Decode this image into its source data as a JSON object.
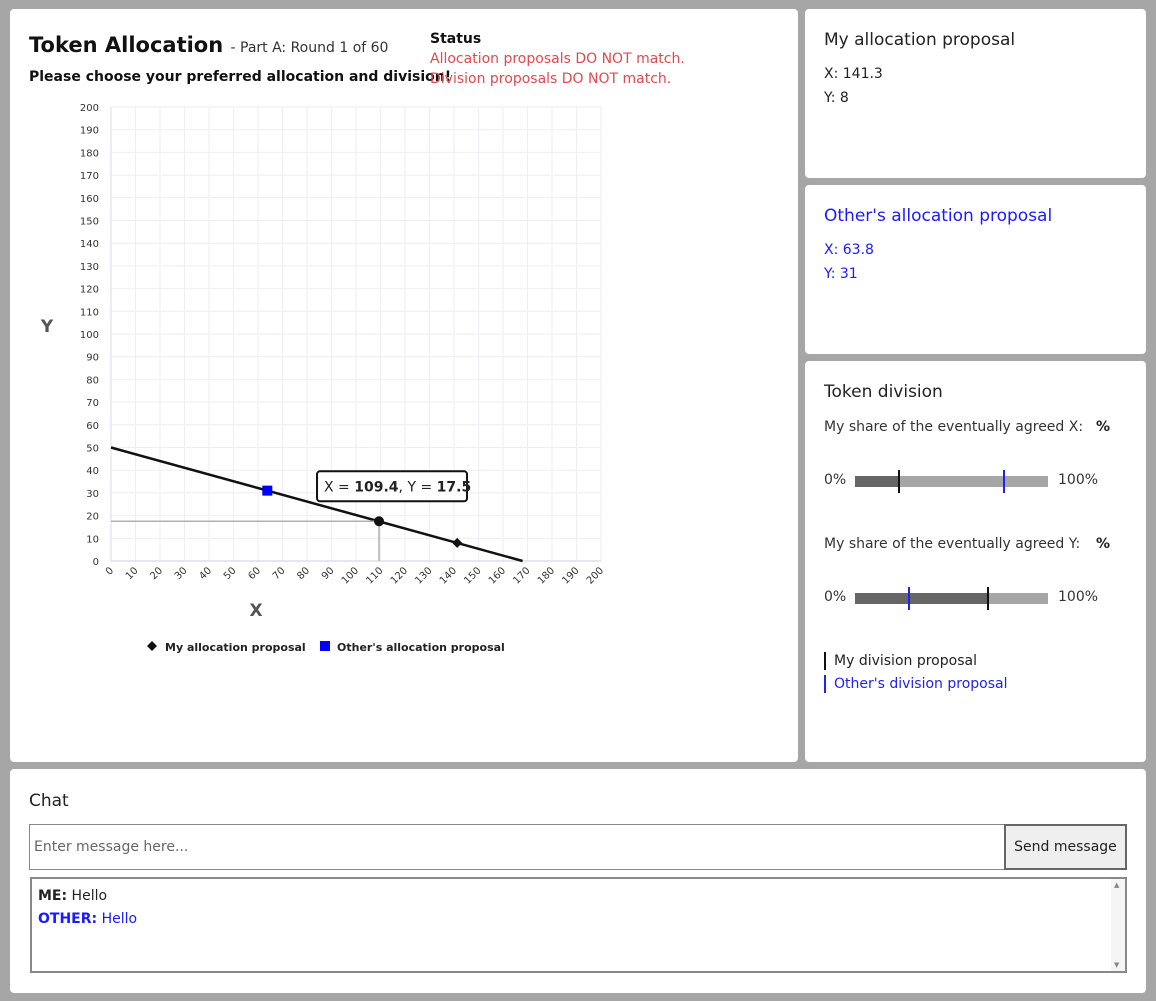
{
  "header": {
    "title": "Token Allocation",
    "subtitle": "- Part A: Round 1 of 60",
    "instruction": "Please choose your preferred allocation and division!"
  },
  "status": {
    "heading": "Status",
    "allocation_message": "Allocation proposals DO NOT match.",
    "division_message": "Division proposals DO NOT match."
  },
  "chart_data": {
    "type": "line",
    "xlabel": "X",
    "ylabel": "Y",
    "xlim": [
      0,
      200
    ],
    "ylim": [
      0,
      200
    ],
    "xticks": [
      0,
      10,
      20,
      30,
      40,
      50,
      60,
      70,
      80,
      90,
      100,
      110,
      120,
      130,
      140,
      150,
      160,
      170,
      180,
      190,
      200
    ],
    "yticks": [
      0,
      10,
      20,
      30,
      40,
      50,
      60,
      70,
      80,
      90,
      100,
      110,
      120,
      130,
      140,
      150,
      160,
      170,
      180,
      190,
      200
    ],
    "grid": true,
    "budget_line": {
      "x": [
        0,
        168
      ],
      "y": [
        50,
        0
      ]
    },
    "hover_point": {
      "x": 109.4,
      "y": 17.5,
      "label_x": "109.4",
      "label_y": "17.5"
    },
    "series": [
      {
        "name": "My allocation proposal",
        "marker": "diamond",
        "color": "#111111",
        "points": [
          {
            "x": 141.3,
            "y": 8
          }
        ]
      },
      {
        "name": "Other's allocation proposal",
        "marker": "square",
        "color": "#0000ff",
        "points": [
          {
            "x": 63.8,
            "y": 31
          }
        ]
      }
    ],
    "legend_placement": "bottom"
  },
  "my_allocation": {
    "title": "My allocation proposal",
    "x_text": "X: 141.3",
    "y_text": "Y: 8"
  },
  "other_allocation": {
    "title": "Other's allocation proposal",
    "x_text": "X: 63.8",
    "y_text": "Y: 31"
  },
  "division": {
    "title": "Token division",
    "x_label": "My share of the eventually agreed X:",
    "y_label": "My share of the eventually agreed Y:",
    "pct_symbol": "%",
    "min_label": "0%",
    "max_label": "100%",
    "x_slider": {
      "mine": 0.23,
      "other": 0.77,
      "fill": 0.23
    },
    "y_slider": {
      "mine": 0.69,
      "other": 0.28,
      "fill": 0.69
    },
    "legend_mine": "My division proposal",
    "legend_other": "Other's division proposal",
    "colors": {
      "mine": "#111111",
      "other": "#2222ee"
    }
  },
  "chat": {
    "title": "Chat",
    "placeholder": "Enter message here...",
    "send_label": "Send message",
    "messages": [
      {
        "who": "ME:",
        "text": "Hello"
      },
      {
        "who": "OTHER:",
        "text": "Hello"
      }
    ]
  }
}
